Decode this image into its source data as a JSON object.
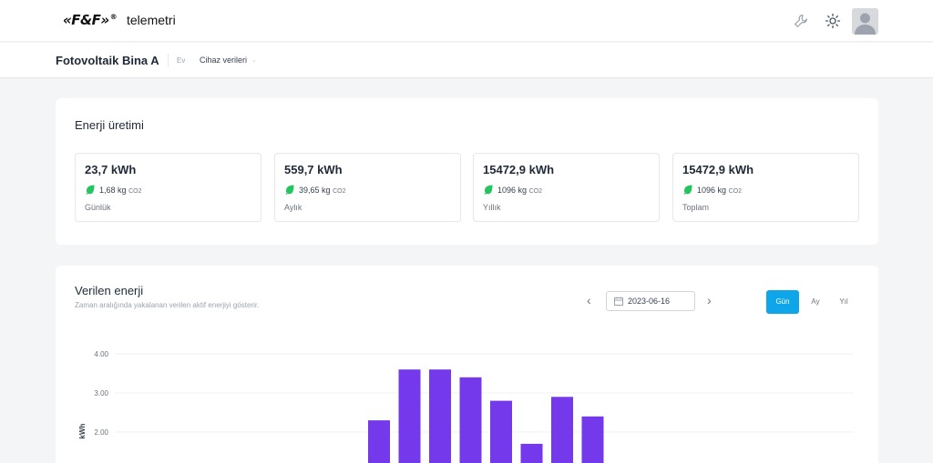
{
  "header": {
    "logo_text": "«F&F»",
    "logo_mark": "®",
    "brand": "telemetri",
    "icons": [
      "wrench-icon",
      "sun-icon"
    ]
  },
  "breadcrumb": {
    "site": "Fotovoltaik Bina A",
    "home": "Ev",
    "current": "Cihaz verileri",
    "current_arrow": "⌄"
  },
  "energy_card": {
    "title": "Enerji üretimi",
    "stats": [
      {
        "value": "23,7 kWh",
        "co2_amount": "1,68",
        "co2_unit": "kg",
        "co2_gas": "CO2",
        "label": "Günlük"
      },
      {
        "value": "559,7 kWh",
        "co2_amount": "39,65",
        "co2_unit": "kg",
        "co2_gas": "CO2",
        "label": "Aylık"
      },
      {
        "value": "15472,9 kWh",
        "co2_amount": "1096",
        "co2_unit": "kg",
        "co2_gas": "CO2",
        "label": "Yıllık"
      },
      {
        "value": "15472,9 kWh",
        "co2_amount": "1096",
        "co2_unit": "kg",
        "co2_gas": "CO2",
        "label": "Toplam"
      }
    ]
  },
  "delivered_card": {
    "title": "Verilen enerji",
    "subtitle": "Zaman aralığında yakalanan verilen aktif enerjiyi gösterir.",
    "prev": "‹",
    "next": "›",
    "date": "2023-06-16",
    "periods": [
      "Gün",
      "Ay",
      "Yıl"
    ],
    "active_period": "Gün"
  },
  "colors": {
    "accent": "#0ea5e9",
    "bar": "#7539ec",
    "leaf": "#22c55e"
  },
  "chart_data": {
    "type": "bar",
    "ylabel": "kWh",
    "ylim": [
      0,
      4
    ],
    "y_ticks": [
      "4.00",
      "3.00",
      "2.00"
    ],
    "grid": true,
    "values": [
      2.3,
      3.6,
      3.6,
      3.4,
      2.8,
      1.7,
      2.9,
      2.4
    ]
  }
}
